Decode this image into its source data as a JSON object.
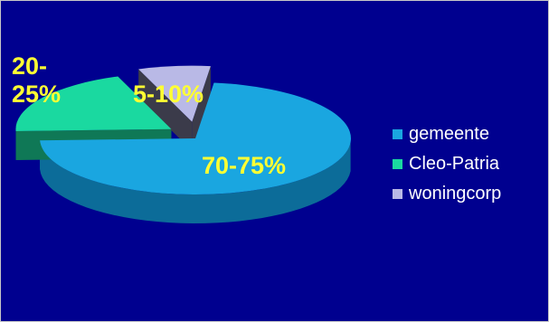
{
  "chart_data": {
    "type": "pie",
    "categories": [
      "gemeente",
      "Cleo-Patria",
      "woningcorp"
    ],
    "values": [
      72.5,
      20,
      7.5
    ],
    "labels": [
      "70-75%",
      "20-\n25%",
      "5-10%"
    ],
    "colors": [
      "#1aa6e0",
      "#1ad9a0",
      "#b9b9e6"
    ],
    "side_colors": [
      "#0c6c99",
      "#0f7856",
      "#3b3b4a"
    ],
    "exploded": [
      false,
      true,
      true
    ],
    "three_d": true,
    "legend": "right"
  },
  "slide": {
    "background": "#00008f",
    "label_color": "#ffff33"
  }
}
